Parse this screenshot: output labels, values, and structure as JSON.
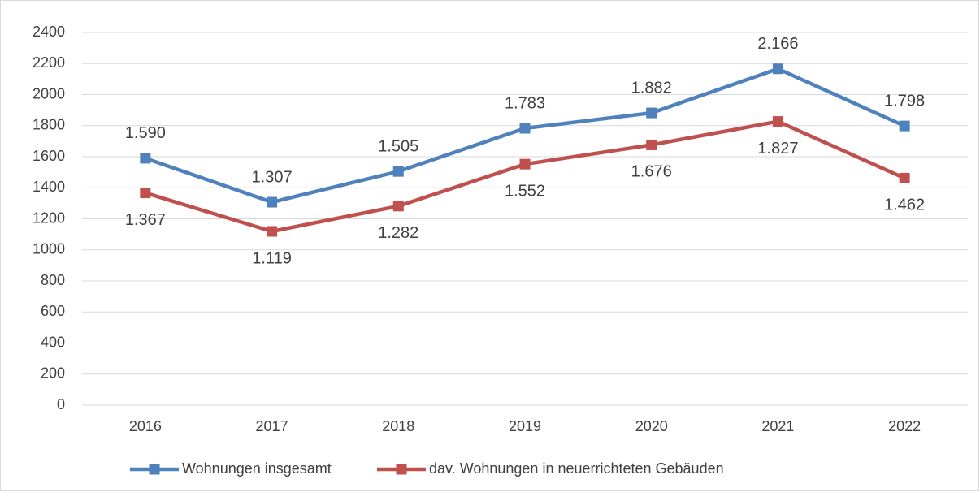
{
  "chart_data": {
    "type": "line",
    "categories": [
      "2016",
      "2017",
      "2018",
      "2019",
      "2020",
      "2021",
      "2022"
    ],
    "series": [
      {
        "name": "Wohnungen insgesamt",
        "color": "#4f81bd",
        "values": [
          1590,
          1307,
          1505,
          1783,
          1882,
          2166,
          1798
        ],
        "value_labels": [
          "1.590",
          "1.307",
          "1.505",
          "1.783",
          "1.882",
          "2.166",
          "1.798"
        ]
      },
      {
        "name": "dav. Wohnungen in neuerrichteten Gebäuden",
        "color": "#c0504d",
        "values": [
          1367,
          1119,
          1282,
          1552,
          1676,
          1827,
          1462
        ],
        "value_labels": [
          "1.367",
          "1.119",
          "1.282",
          "1.552",
          "1.676",
          "1.827",
          "1.462"
        ]
      }
    ],
    "ylim": [
      0,
      2400
    ],
    "yticks": [
      0,
      200,
      400,
      600,
      800,
      1000,
      1200,
      1400,
      1600,
      1800,
      2000,
      2200,
      2400
    ],
    "grid": true,
    "legend": "bottom"
  }
}
